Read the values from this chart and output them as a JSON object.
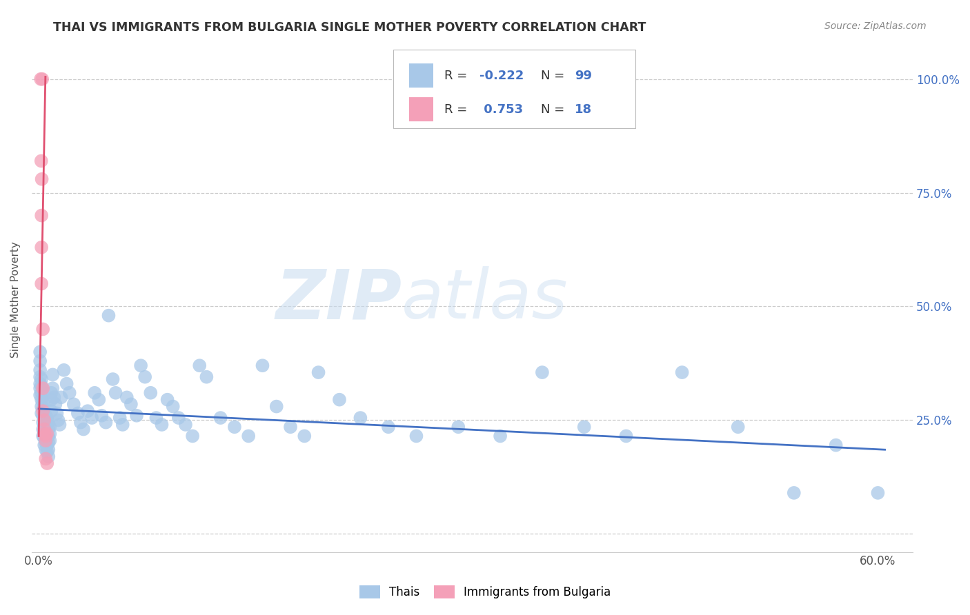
{
  "title": "THAI VS IMMIGRANTS FROM BULGARIA SINGLE MOTHER POVERTY CORRELATION CHART",
  "source": "Source: ZipAtlas.com",
  "ylabel": "Single Mother Poverty",
  "xlim": [
    -0.005,
    0.625
  ],
  "ylim": [
    -0.04,
    1.07
  ],
  "watermark_zip": "ZIP",
  "watermark_atlas": "atlas",
  "blue_color": "#A8C8E8",
  "pink_color": "#F4A0B8",
  "blue_line_color": "#4472C4",
  "pink_line_color": "#E05070",
  "thai_points": [
    [
      0.001,
      0.4
    ],
    [
      0.001,
      0.38
    ],
    [
      0.001,
      0.36
    ],
    [
      0.001,
      0.345
    ],
    [
      0.001,
      0.33
    ],
    [
      0.001,
      0.32
    ],
    [
      0.001,
      0.305
    ],
    [
      0.002,
      0.34
    ],
    [
      0.002,
      0.325
    ],
    [
      0.002,
      0.31
    ],
    [
      0.002,
      0.295
    ],
    [
      0.002,
      0.28
    ],
    [
      0.002,
      0.265
    ],
    [
      0.003,
      0.29
    ],
    [
      0.003,
      0.275
    ],
    [
      0.003,
      0.26
    ],
    [
      0.003,
      0.245
    ],
    [
      0.003,
      0.23
    ],
    [
      0.003,
      0.215
    ],
    [
      0.004,
      0.27
    ],
    [
      0.004,
      0.255
    ],
    [
      0.004,
      0.24
    ],
    [
      0.004,
      0.225
    ],
    [
      0.004,
      0.21
    ],
    [
      0.004,
      0.195
    ],
    [
      0.005,
      0.26
    ],
    [
      0.005,
      0.245
    ],
    [
      0.005,
      0.23
    ],
    [
      0.005,
      0.215
    ],
    [
      0.005,
      0.2
    ],
    [
      0.005,
      0.185
    ],
    [
      0.006,
      0.255
    ],
    [
      0.006,
      0.24
    ],
    [
      0.006,
      0.225
    ],
    [
      0.006,
      0.21
    ],
    [
      0.006,
      0.195
    ],
    [
      0.006,
      0.18
    ],
    [
      0.007,
      0.245
    ],
    [
      0.007,
      0.23
    ],
    [
      0.007,
      0.215
    ],
    [
      0.007,
      0.2
    ],
    [
      0.007,
      0.185
    ],
    [
      0.007,
      0.17
    ],
    [
      0.008,
      0.235
    ],
    [
      0.008,
      0.22
    ],
    [
      0.008,
      0.205
    ],
    [
      0.009,
      0.31
    ],
    [
      0.009,
      0.295
    ],
    [
      0.009,
      0.27
    ],
    [
      0.01,
      0.35
    ],
    [
      0.01,
      0.32
    ],
    [
      0.011,
      0.3
    ],
    [
      0.012,
      0.285
    ],
    [
      0.013,
      0.265
    ],
    [
      0.014,
      0.25
    ],
    [
      0.015,
      0.24
    ],
    [
      0.016,
      0.3
    ],
    [
      0.018,
      0.36
    ],
    [
      0.02,
      0.33
    ],
    [
      0.022,
      0.31
    ],
    [
      0.025,
      0.285
    ],
    [
      0.028,
      0.265
    ],
    [
      0.03,
      0.245
    ],
    [
      0.032,
      0.23
    ],
    [
      0.035,
      0.27
    ],
    [
      0.038,
      0.255
    ],
    [
      0.04,
      0.31
    ],
    [
      0.043,
      0.295
    ],
    [
      0.045,
      0.26
    ],
    [
      0.048,
      0.245
    ],
    [
      0.05,
      0.48
    ],
    [
      0.053,
      0.34
    ],
    [
      0.055,
      0.31
    ],
    [
      0.058,
      0.255
    ],
    [
      0.06,
      0.24
    ],
    [
      0.063,
      0.3
    ],
    [
      0.066,
      0.285
    ],
    [
      0.07,
      0.26
    ],
    [
      0.073,
      0.37
    ],
    [
      0.076,
      0.345
    ],
    [
      0.08,
      0.31
    ],
    [
      0.084,
      0.255
    ],
    [
      0.088,
      0.24
    ],
    [
      0.092,
      0.295
    ],
    [
      0.096,
      0.28
    ],
    [
      0.1,
      0.255
    ],
    [
      0.105,
      0.24
    ],
    [
      0.11,
      0.215
    ],
    [
      0.115,
      0.37
    ],
    [
      0.12,
      0.345
    ],
    [
      0.13,
      0.255
    ],
    [
      0.14,
      0.235
    ],
    [
      0.15,
      0.215
    ],
    [
      0.16,
      0.37
    ],
    [
      0.17,
      0.28
    ],
    [
      0.18,
      0.235
    ],
    [
      0.19,
      0.215
    ],
    [
      0.2,
      0.355
    ],
    [
      0.215,
      0.295
    ],
    [
      0.23,
      0.255
    ],
    [
      0.25,
      0.235
    ],
    [
      0.27,
      0.215
    ],
    [
      0.3,
      0.235
    ],
    [
      0.33,
      0.215
    ],
    [
      0.36,
      0.355
    ],
    [
      0.39,
      0.235
    ],
    [
      0.42,
      0.215
    ],
    [
      0.46,
      0.355
    ],
    [
      0.5,
      0.235
    ],
    [
      0.54,
      0.09
    ],
    [
      0.57,
      0.195
    ],
    [
      0.6,
      0.09
    ]
  ],
  "bulgaria_points": [
    [
      0.0015,
      1.0
    ],
    [
      0.0025,
      1.0
    ],
    [
      0.0018,
      0.82
    ],
    [
      0.0022,
      0.78
    ],
    [
      0.002,
      0.7
    ],
    [
      0.002,
      0.63
    ],
    [
      0.002,
      0.55
    ],
    [
      0.003,
      0.45
    ],
    [
      0.003,
      0.32
    ],
    [
      0.003,
      0.27
    ],
    [
      0.004,
      0.25
    ],
    [
      0.004,
      0.23
    ],
    [
      0.004,
      0.22
    ],
    [
      0.005,
      0.215
    ],
    [
      0.005,
      0.205
    ],
    [
      0.005,
      0.165
    ],
    [
      0.006,
      0.22
    ],
    [
      0.006,
      0.155
    ]
  ],
  "blue_trendline_x": [
    0.0,
    0.605
  ],
  "blue_trendline_y": [
    0.275,
    0.185
  ],
  "pink_trendline_x": [
    0.0,
    0.0048
  ],
  "pink_trendline_y": [
    0.215,
    1.005
  ]
}
